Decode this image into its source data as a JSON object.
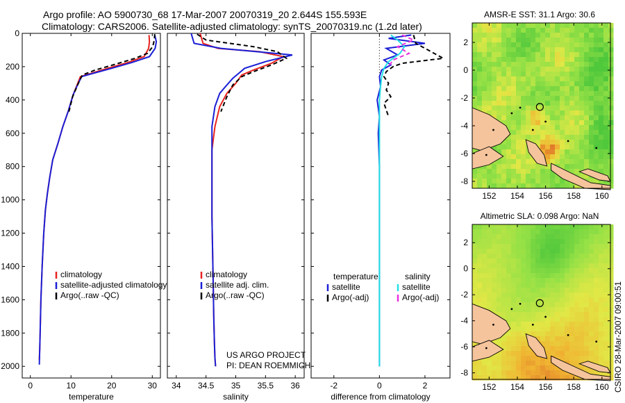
{
  "header": {
    "line1": "Argo profile: AO 5900730_68 17-Mar-2007 20070319_20 2.644S 155.593E",
    "line2": "Climatology: CARS2006. Satellite-adjusted climatology: synTS_20070319.nc (1.2d later)"
  },
  "colors": {
    "climatology": "#e8221e",
    "satellite": "#1a1fd6",
    "argo": "#000000",
    "satellite_salinity": "#22e0e6",
    "argo_salinity_adj": "#e830e0",
    "land": "#f5c49c"
  },
  "credit": "CSIRO 28-Mar-2007 09:00:51",
  "chart_data": [
    {
      "type": "line",
      "name": "temperature",
      "xlabel": "temperature",
      "ylabel": "",
      "xlim": [
        -2,
        32
      ],
      "ylim": [
        2070,
        0
      ],
      "x_ticks": [
        0,
        10,
        20,
        30
      ],
      "y_ticks": [
        0,
        200,
        400,
        600,
        800,
        1000,
        1200,
        1400,
        1600,
        1800,
        2000
      ],
      "legend": {
        "position": "lower-center",
        "entries": [
          "climatology",
          "satellite-adjusted climatology",
          "Argo(..raw -QC)"
        ]
      },
      "series": [
        {
          "name": "climatology",
          "color_key": "climatology",
          "dash": "",
          "x": [
            29.2,
            29.3,
            29.1,
            28,
            24,
            19,
            15,
            12.3,
            11.5,
            10.5,
            9.3,
            8,
            6.8,
            5.5,
            4.8,
            4.2,
            3.7,
            3.3,
            2.9,
            2.6,
            2.4,
            2.3,
            2.2
          ],
          "y": [
            10,
            50,
            90,
            140,
            175,
            210,
            240,
            260,
            310,
            370,
            470,
            560,
            660,
            760,
            860,
            960,
            1060,
            1200,
            1400,
            1600,
            1800,
            1900,
            1960
          ]
        },
        {
          "name": "satellite-adjusted climatology",
          "color_key": "satellite",
          "dash": "",
          "x": [
            30.6,
            31.0,
            30.7,
            29.3,
            25,
            20,
            15.5,
            12.6,
            11.6,
            10.5,
            9.3,
            8,
            6.8,
            5.5,
            4.8,
            4.2,
            3.7,
            3.3,
            2.9,
            2.6,
            2.4,
            2.3,
            2.2
          ],
          "y": [
            10,
            50,
            90,
            140,
            175,
            210,
            240,
            260,
            310,
            370,
            470,
            560,
            660,
            760,
            860,
            960,
            1060,
            1200,
            1400,
            1600,
            1800,
            1900,
            1990
          ]
        },
        {
          "name": "Argo(..raw -QC)",
          "color_key": "argo",
          "dash": "6 4",
          "x": [
            30.6,
            30.5,
            30.1,
            28.8,
            25.8,
            21,
            16,
            12.8,
            11.8,
            10.4,
            9.5
          ],
          "y": [
            5,
            40,
            80,
            120,
            150,
            185,
            220,
            250,
            300,
            380,
            470
          ]
        }
      ]
    },
    {
      "type": "line",
      "name": "salinity",
      "xlabel": "salinity",
      "ylabel": "",
      "xlim": [
        33.85,
        36.15
      ],
      "ylim": [
        2070,
        0
      ],
      "x_ticks": [
        34,
        34.5,
        35,
        35.5,
        36
      ],
      "legend": {
        "position": "lower-center",
        "entries": [
          "climatology",
          "satellite adj. clim.",
          "Argo(..raw -QC)"
        ]
      },
      "annotation": [
        "US ARGO PROJECT",
        "PI: DEAN ROEMMICH"
      ],
      "series": [
        {
          "name": "climatology",
          "color_key": "climatology",
          "dash": "",
          "x": [
            34.4,
            34.45,
            34.7,
            35.4,
            35.8,
            35.6,
            35.3,
            35.1,
            35.0,
            34.85,
            34.73,
            34.65,
            34.6,
            34.6,
            34.6,
            34.61,
            34.62,
            34.63,
            34.64,
            34.65,
            34.66
          ],
          "y": [
            0,
            60,
            90,
            110,
            140,
            180,
            220,
            250,
            300,
            360,
            440,
            560,
            700,
            900,
            1100,
            1300,
            1500,
            1700,
            1850,
            1950,
            2000
          ]
        },
        {
          "name": "satellite adj. clim.",
          "color_key": "satellite",
          "dash": "",
          "x": [
            34.25,
            34.3,
            34.75,
            35.95,
            35.5,
            35.15,
            35.05,
            34.95,
            34.85,
            34.73,
            34.65,
            34.6,
            34.6,
            34.6,
            34.6,
            34.61,
            34.62,
            34.63,
            34.64,
            34.65,
            34.66
          ],
          "y": [
            0,
            60,
            90,
            130,
            170,
            210,
            240,
            270,
            310,
            360,
            440,
            560,
            700,
            900,
            1100,
            1300,
            1500,
            1700,
            1850,
            1950,
            2000
          ]
        },
        {
          "name": "Argo(..raw -QC)",
          "color_key": "argo",
          "dash": "6 4",
          "x": [
            34.35,
            34.5,
            35.3,
            35.7,
            35.85,
            35.6,
            35.3,
            35.1,
            34.95,
            34.85,
            34.75
          ],
          "y": [
            5,
            40,
            80,
            110,
            150,
            190,
            230,
            260,
            310,
            380,
            470
          ]
        }
      ]
    },
    {
      "type": "line",
      "name": "difference from climatology",
      "xlabel": "difference from climatology",
      "ylabel": "",
      "xlim": [
        -3,
        3.1
      ],
      "ylim": [
        2070,
        0
      ],
      "x_ticks": [
        -2,
        0,
        2
      ],
      "legend": {
        "position": "lower-center",
        "headers": [
          "temperature",
          "salinity"
        ],
        "entries": [
          "satellite",
          "Argo(-adj)",
          "satellite",
          "Argo(-adj)"
        ]
      },
      "series": [
        {
          "name": "temperature satellite",
          "color_key": "satellite",
          "dash": "",
          "x": [
            1.4,
            0.4,
            2.0,
            0.3,
            0.8,
            0.2,
            0.5,
            0.1,
            0,
            0.05,
            -0.1,
            0,
            -0.05,
            0,
            0,
            0,
            0,
            0,
            0,
            0,
            0
          ],
          "y": [
            10,
            30,
            60,
            90,
            130,
            160,
            190,
            220,
            260,
            320,
            400,
            500,
            600,
            800,
            1000,
            1200,
            1400,
            1600,
            1800,
            1950,
            2000
          ]
        },
        {
          "name": "temperature Argo(-adj)",
          "color_key": "argo",
          "dash": "6 4",
          "x": [
            1.5,
            1.6,
            2.8,
            1.0,
            0.6,
            0.3,
            0.2,
            0.4,
            0.3,
            0.5,
            0.2,
            0.3,
            0.4
          ],
          "y": [
            10,
            60,
            150,
            180,
            200,
            230,
            260,
            300,
            340,
            380,
            420,
            460,
            500
          ]
        },
        {
          "name": "salinity satellite",
          "color_key": "satellite_salinity",
          "dash": "",
          "x": [
            0.5,
            0.8,
            1.1,
            0.9,
            0.4,
            0.2,
            0.1,
            0.05,
            0,
            0,
            0,
            0,
            0,
            0,
            0,
            0,
            0
          ],
          "y": [
            10,
            40,
            80,
            120,
            170,
            210,
            260,
            320,
            400,
            500,
            700,
            900,
            1100,
            1300,
            1500,
            1800,
            2000
          ]
        },
        {
          "name": "salinity Argo(-adj)",
          "color_key": "argo_salinity_adj",
          "dash": "6 4",
          "x": [
            1.0,
            1.5,
            0.8,
            1.3,
            0.6,
            0.4
          ],
          "y": [
            10,
            40,
            80,
            120,
            160,
            200
          ]
        }
      ]
    },
    {
      "type": "heatmap",
      "name": "sst",
      "title": "AMSR-E SST: 31.1 Argo: 30.6",
      "x_ticks": [
        152,
        154,
        156,
        158,
        160
      ],
      "y_ticks": [
        2,
        0,
        -2,
        -4,
        -6,
        -8
      ],
      "xlim": [
        150.8,
        160.6
      ],
      "ylim": [
        -8.5,
        3.4
      ],
      "argo_marker": {
        "lon": 155.593,
        "lat": -2.644
      }
    },
    {
      "type": "heatmap",
      "name": "sla",
      "title": "Altimetric SLA: 0.098 Argo: NaN",
      "x_ticks": [
        152,
        154,
        156,
        158,
        160
      ],
      "y_ticks": [
        2,
        0,
        -2,
        -4,
        -6,
        -8
      ],
      "xlim": [
        150.8,
        160.6
      ],
      "ylim": [
        -8.5,
        3.4
      ],
      "argo_marker": {
        "lon": 155.593,
        "lat": -2.644
      }
    }
  ]
}
